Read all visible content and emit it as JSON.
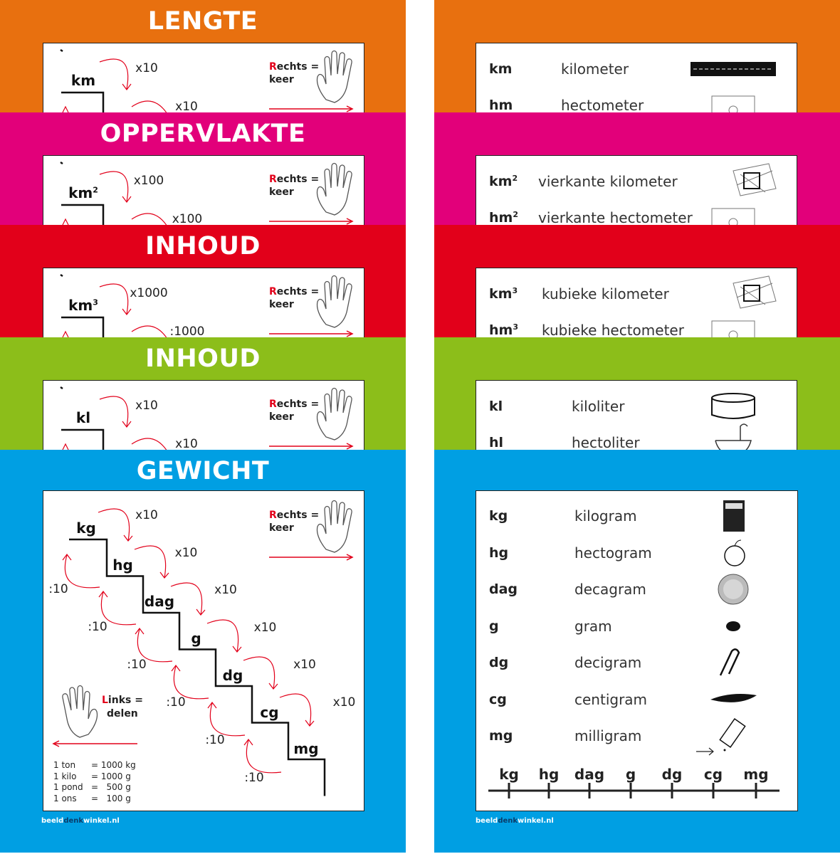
{
  "colors": {
    "orange": "#e8700f",
    "magenta": "#e2007a",
    "red": "#e2001a",
    "green": "#8cbe1a",
    "blue": "#009fe3"
  },
  "left_panels": [
    {
      "title": "LENGTE",
      "color": "#e8700f",
      "unit": "km",
      "sup": "",
      "op1": "x10",
      "op2": "x10"
    },
    {
      "title": "OPPERVLAKTE",
      "color": "#e2007a",
      "unit": "km",
      "sup": "2",
      "op1": "x100",
      "op2": "x100"
    },
    {
      "title": "INHOUD",
      "color": "#e2001a",
      "unit": "km",
      "sup": "3",
      "op1": "x1000",
      "op2": ":1000"
    },
    {
      "title": "INHOUD",
      "color": "#8cbe1a",
      "unit": "kl",
      "sup": "",
      "op1": "x10",
      "op2": "x10"
    }
  ],
  "rechts": {
    "first_letter": "R",
    "rest": "echts =",
    "keer": "keer"
  },
  "right_panels": [
    {
      "color": "#e8700f",
      "rows": [
        {
          "abbr": "km",
          "sup": "",
          "name": "kilometer"
        },
        {
          "abbr": "hm",
          "sup": "",
          "name": "hectometer"
        }
      ],
      "icons": [
        "road-icon",
        "soccer-field-icon"
      ]
    },
    {
      "color": "#e2007a",
      "rows": [
        {
          "abbr": "km",
          "sup": "2",
          "name": "vierkante kilometer"
        },
        {
          "abbr": "hm",
          "sup": "2",
          "name": "vierkante hectometer"
        }
      ],
      "icons": [
        "map-square-icon",
        "soccer-field-icon"
      ]
    },
    {
      "color": "#e2001a",
      "rows": [
        {
          "abbr": "km",
          "sup": "3",
          "name": "kubieke kilometer"
        },
        {
          "abbr": "hm",
          "sup": "3",
          "name": "kubieke hectometer"
        }
      ],
      "icons": [
        "city-map-icon",
        "soccer-field-icon"
      ]
    },
    {
      "color": "#8cbe1a",
      "rows": [
        {
          "abbr": "kl",
          "sup": "",
          "name": "kiloliter"
        },
        {
          "abbr": "hl",
          "sup": "",
          "name": "hectoliter"
        }
      ],
      "icons": [
        "pool-icon",
        "bathtub-icon"
      ]
    }
  ],
  "gewicht": {
    "title": "GEWICHT",
    "color": "#009fe3",
    "steps": [
      "kg",
      "hg",
      "dag",
      "g",
      "dg",
      "cg",
      "mg"
    ],
    "up_ops": [
      "x10",
      "x10",
      "x10",
      "x10",
      "x10",
      "x10"
    ],
    "down_ops": [
      ":10",
      ":10",
      ":10",
      ":10",
      ":10",
      ":10"
    ],
    "links": {
      "first_letter": "L",
      "rest": "inks =",
      "delen": "delen"
    },
    "conversions": [
      {
        "name": "1 ton",
        "eq": "= 1000 kg"
      },
      {
        "name": "1 kilo",
        "eq": "= 1000 g"
      },
      {
        "name": "1 pond",
        "eq": "=   500 g"
      },
      {
        "name": "1 ons",
        "eq": "=   100 g"
      }
    ],
    "rows": [
      {
        "abbr": "kg",
        "name": "kilogram",
        "icon": "sugar-box-icon"
      },
      {
        "abbr": "hg",
        "name": "hectogram",
        "icon": "apple-icon"
      },
      {
        "abbr": "dag",
        "name": "decagram",
        "icon": "coin-icon"
      },
      {
        "abbr": "g",
        "name": "gram",
        "icon": "pill-icon"
      },
      {
        "abbr": "dg",
        "name": "decigram",
        "icon": "paperclip-icon"
      },
      {
        "abbr": "cg",
        "name": "centigram",
        "icon": "feather-icon"
      },
      {
        "abbr": "mg",
        "name": "milligram",
        "icon": "salt-shaker-icon"
      }
    ],
    "number_line": [
      "kg",
      "hg",
      "dag",
      "g",
      "dg",
      "cg",
      "mg"
    ]
  },
  "brand": {
    "part1": "beeld",
    "part2": "denk",
    "part3": "winkel.nl"
  }
}
